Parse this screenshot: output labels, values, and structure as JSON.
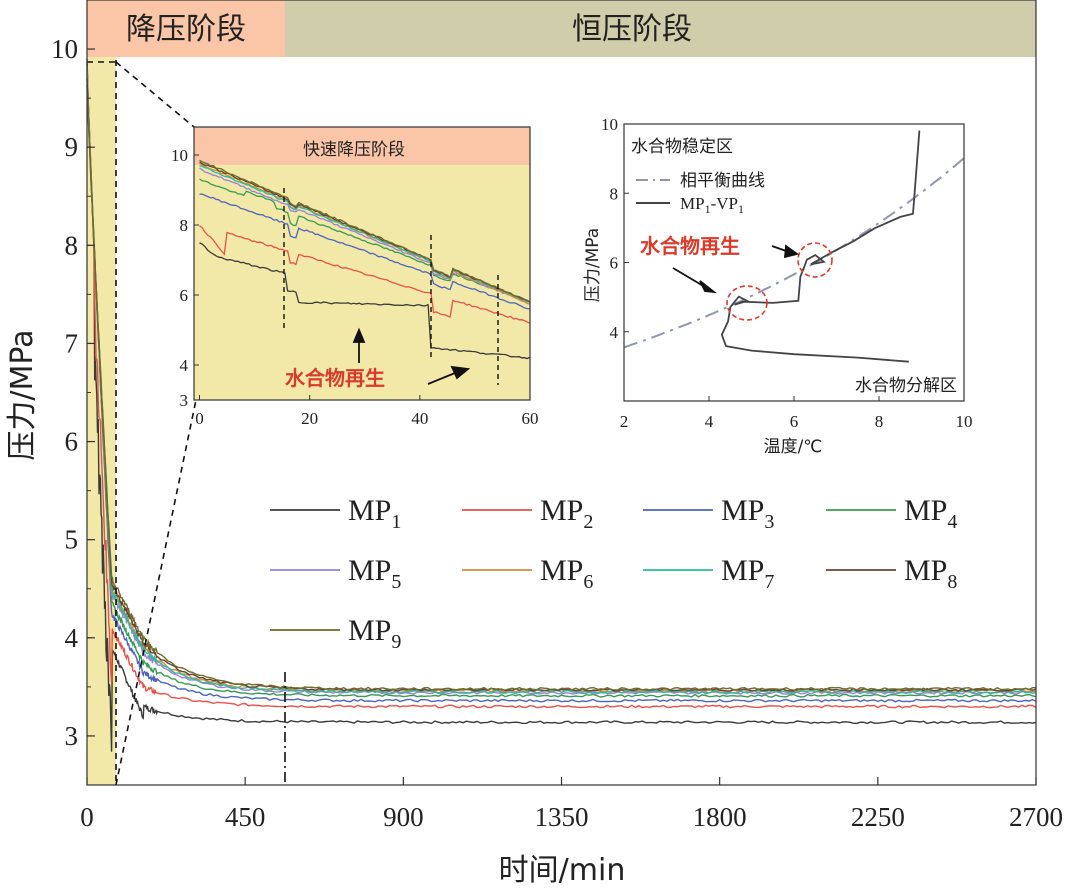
{
  "colors": {
    "MP1": "#3b3b3b",
    "MP2": "#e8514a",
    "MP3": "#4d65c0",
    "MP4": "#3a9a52",
    "MP5": "#9a83d6",
    "MP6": "#c8903a",
    "MP7": "#2fb9a0",
    "MP8": "#6b4038",
    "MP9": "#6f6b2a",
    "phase_depress": "#fbc5a8",
    "phase_const": "#cfcdaa",
    "shade": "#f2e8a8",
    "eq_curve": "#8f96ae"
  },
  "chart_data": [
    {
      "type": "line",
      "id": "main",
      "xlabel": "时间/min",
      "ylabel": "压力/MPa",
      "xlim": [
        0,
        2700
      ],
      "ylim": [
        2.5,
        10.5
      ],
      "xticks": [
        "0",
        "450",
        "900",
        "1350",
        "1800",
        "2250",
        "2700"
      ],
      "yticks": [
        "3",
        "4",
        "5",
        "6",
        "7",
        "8",
        "9",
        "10"
      ],
      "phases": [
        {
          "label": "降压阶段",
          "x": [
            0,
            590
          ]
        },
        {
          "label": "恒压阶段",
          "x": [
            590,
            2700
          ]
        }
      ],
      "shade_x": [
        0,
        70
      ],
      "dashed_markers_x": [
        70,
        590
      ],
      "legend": {
        "position": "center-right"
      },
      "series": [
        {
          "name": "MP",
          "sub": "1",
          "final": 3.14,
          "knee": 3.3
        },
        {
          "name": "MP",
          "sub": "2",
          "final": 3.3,
          "knee": 3.5
        },
        {
          "name": "MP",
          "sub": "3",
          "final": 3.36,
          "knee": 3.65
        },
        {
          "name": "MP",
          "sub": "4",
          "final": 3.41,
          "knee": 3.75
        },
        {
          "name": "MP",
          "sub": "5",
          "final": 3.44,
          "knee": 3.85
        },
        {
          "name": "MP",
          "sub": "6",
          "final": 3.46,
          "knee": 3.9
        },
        {
          "name": "MP",
          "sub": "7",
          "final": 3.45,
          "knee": 3.88
        },
        {
          "name": "MP",
          "sub": "8",
          "final": 3.47,
          "knee": 3.95
        },
        {
          "name": "MP",
          "sub": "9",
          "final": 3.48,
          "knee": 4.0
        }
      ]
    },
    {
      "type": "line",
      "id": "inset_left",
      "title": "快速降压阶段",
      "xlim": [
        -1,
        60
      ],
      "ylim": [
        3,
        10.8
      ],
      "xticks": [
        "0",
        "20",
        "40",
        "60"
      ],
      "yticks": [
        "3",
        "4",
        "6",
        "8",
        "10"
      ],
      "dashed_markers_x": [
        16,
        42,
        54
      ],
      "annotation": "水合物再生"
    },
    {
      "type": "line",
      "id": "inset_right",
      "xlabel": "温度/℃",
      "ylabel": "压力/MPa",
      "xlim": [
        2,
        10
      ],
      "ylim": [
        2,
        10
      ],
      "xticks": [
        "2",
        "4",
        "6",
        "8",
        "10"
      ],
      "yticks": [
        "4",
        "6",
        "8",
        "10"
      ],
      "region_top": "水合物稳定区",
      "region_bottom": "水合物分解区",
      "legend": [
        {
          "name": "相平衡曲线",
          "style": "dashdot"
        },
        {
          "name": "MP",
          "sub": "1",
          "suffix": "-VP",
          "sub2": "1",
          "style": "solid"
        }
      ],
      "annotation": "水合物再生"
    }
  ]
}
